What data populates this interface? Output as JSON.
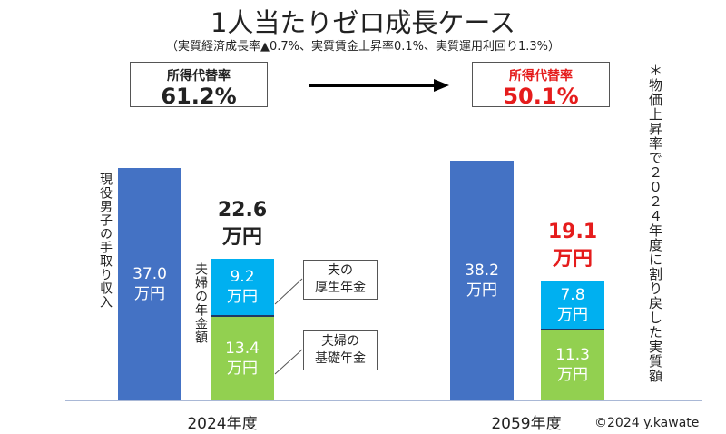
{
  "chart_data": {
    "type": "bar",
    "title": "1人当たりゼロ成長ケース",
    "subtitle": "（実質経済成長率▲0.7%、実質賃金上昇率0.1%、実質運用利回り1.3%）",
    "categories": [
      "2024年度",
      "2059年度"
    ],
    "unit": "万円",
    "series": [
      {
        "name": "現役男子の手取り収入",
        "values": [
          37.0,
          38.2
        ],
        "color": "#4472c4",
        "labels": [
          "37.0",
          "38.2"
        ]
      },
      {
        "name": "夫婦の基礎年金",
        "values": [
          13.4,
          11.3
        ],
        "color": "#92d050",
        "labels": [
          "13.4",
          "11.3"
        ]
      },
      {
        "name": "夫の厚生年金",
        "values": [
          9.2,
          7.8
        ],
        "color": "#00b0f0",
        "labels": [
          "9.2",
          "7.8"
        ]
      }
    ],
    "pension_totals": [
      "22.6",
      "19.1"
    ],
    "pension_label": "夫婦の年金額",
    "callouts": [
      {
        "line1": "夫の",
        "line2": "厚生年金"
      },
      {
        "line1": "夫婦の",
        "line2": "基礎年金"
      }
    ],
    "replacement_rate": {
      "label": "所得代替率",
      "values": [
        "61.2%",
        "50.1%"
      ],
      "highlight_color": "#e51c1c"
    },
    "note": "＊物価上昇率で２０２４年度に割り戻した実質額",
    "copyright": "©2024 y.kawate"
  }
}
